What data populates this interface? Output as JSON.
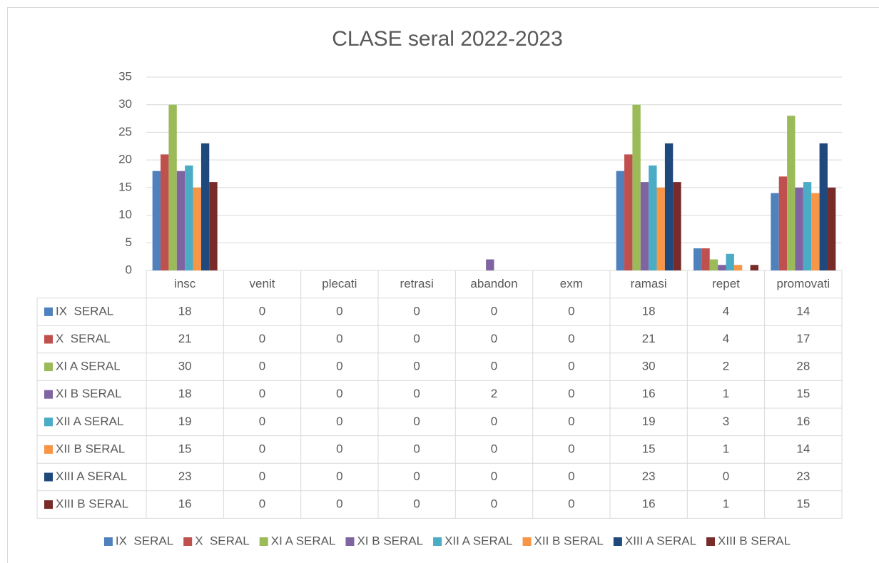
{
  "chart_data": {
    "type": "bar",
    "title": "CLASE seral 2022-2023",
    "categories": [
      "insc",
      "venit",
      "plecati",
      "retrasi",
      "abandon",
      "exm",
      "ramasi",
      "repet",
      "promovati"
    ],
    "series": [
      {
        "name": "IX  SERAL",
        "color": "#4f81bd",
        "values": [
          18,
          0,
          0,
          0,
          0,
          0,
          18,
          4,
          14
        ]
      },
      {
        "name": "X  SERAL",
        "color": "#c0504d",
        "values": [
          21,
          0,
          0,
          0,
          0,
          0,
          21,
          4,
          17
        ]
      },
      {
        "name": "XI A SERAL",
        "color": "#9bbb59",
        "values": [
          30,
          0,
          0,
          0,
          0,
          0,
          30,
          2,
          28
        ]
      },
      {
        "name": "XI B SERAL",
        "color": "#8064a2",
        "values": [
          18,
          0,
          0,
          0,
          2,
          0,
          16,
          1,
          15
        ]
      },
      {
        "name": "XII A SERAL",
        "color": "#4bacc6",
        "values": [
          19,
          0,
          0,
          0,
          0,
          0,
          19,
          3,
          16
        ]
      },
      {
        "name": "XII B SERAL",
        "color": "#f79646",
        "values": [
          15,
          0,
          0,
          0,
          0,
          0,
          15,
          1,
          14
        ]
      },
      {
        "name": "XIII A SERAL",
        "color": "#1f497d",
        "values": [
          23,
          0,
          0,
          0,
          0,
          0,
          23,
          0,
          23
        ]
      },
      {
        "name": "XIII B SERAL",
        "color": "#772c2a",
        "values": [
          16,
          0,
          0,
          0,
          0,
          0,
          16,
          1,
          15
        ]
      }
    ],
    "ylim": [
      0,
      35
    ],
    "yticks": [
      0,
      5,
      10,
      15,
      20,
      25,
      30,
      35
    ],
    "grid": true,
    "legend": "bottom"
  }
}
